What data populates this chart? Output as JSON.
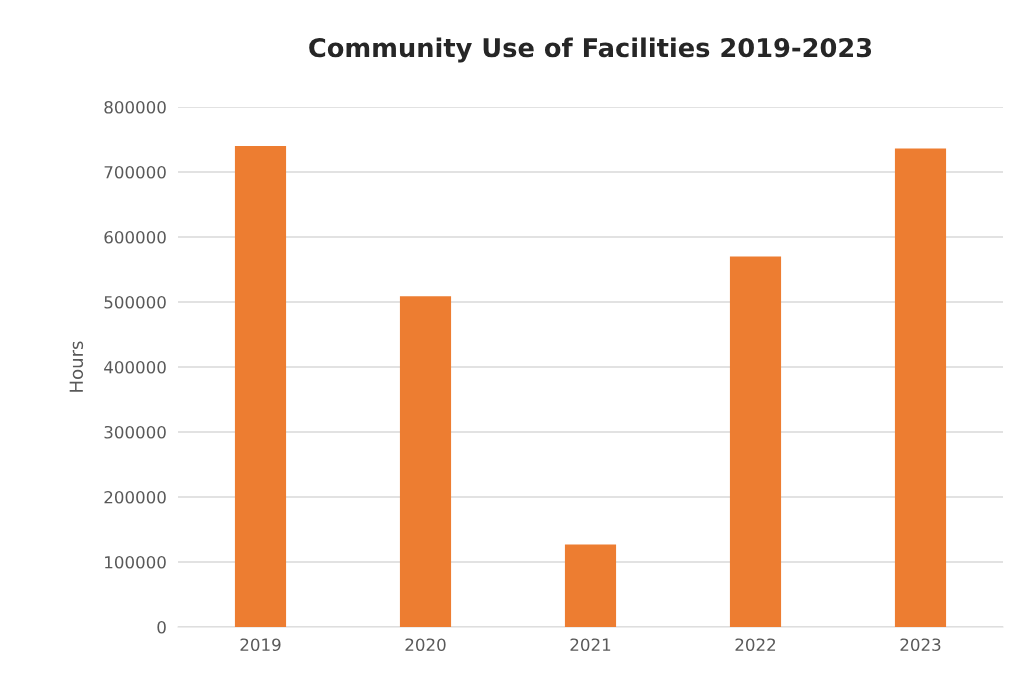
{
  "chart_data": {
    "type": "bar",
    "title": "Community Use of Facilities 2019-2023",
    "ylabel": "Hours",
    "categories": [
      "2019",
      "2020",
      "2021",
      "2022",
      "2023"
    ],
    "values": [
      740000,
      509000,
      127000,
      570000,
      736000
    ],
    "color": "#ed7d31",
    "ylim": [
      0,
      800000
    ],
    "yticks": [
      0,
      100000,
      200000,
      300000,
      400000,
      500000,
      600000,
      700000,
      800000
    ],
    "grid": "y",
    "legend": false
  }
}
